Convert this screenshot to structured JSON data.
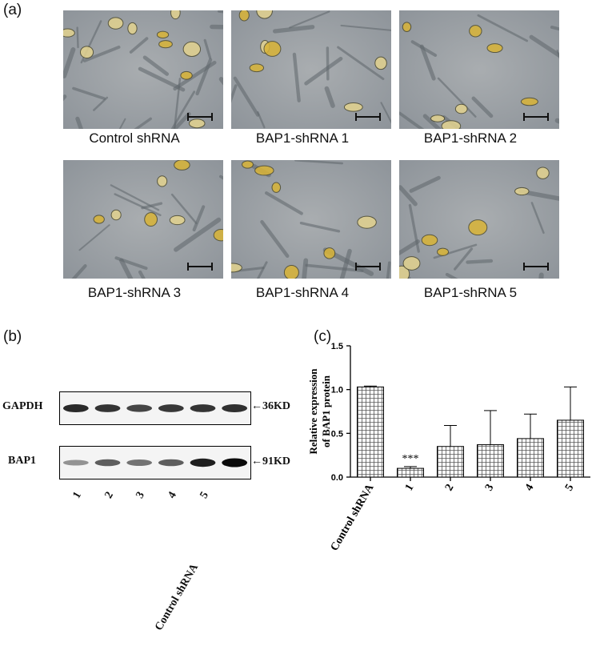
{
  "panels": {
    "a": "(a)",
    "b": "(b)",
    "c": "(c)"
  },
  "micrographs": [
    {
      "caption": "Control shRNA"
    },
    {
      "caption": "BAP1-shRNA 1"
    },
    {
      "caption": "BAP1-shRNA 2"
    },
    {
      "caption": "BAP1-shRNA 3"
    },
    {
      "caption": "BAP1-shRNA 4"
    },
    {
      "caption": "BAP1-shRNA 5"
    }
  ],
  "blot": {
    "rows": [
      {
        "label": "GAPDH",
        "size": "36KD",
        "intensities": [
          0.85,
          0.8,
          0.72,
          0.78,
          0.8,
          0.82
        ]
      },
      {
        "label": "BAP1",
        "size": "91KD",
        "intensities": [
          0.35,
          0.6,
          0.5,
          0.6,
          0.9,
          1.0
        ]
      }
    ],
    "lanes": [
      "1",
      "2",
      "3",
      "4",
      "5",
      "Control  shRNA"
    ]
  },
  "chart_data": {
    "type": "bar",
    "categories": [
      "Control shRNA",
      "1",
      "2",
      "3",
      "4",
      "5"
    ],
    "values": [
      1.03,
      0.1,
      0.35,
      0.37,
      0.44,
      0.65
    ],
    "error_upper": [
      1.04,
      0.12,
      0.59,
      0.76,
      0.72,
      1.03
    ],
    "annotations": [
      {
        "category": "1",
        "text": "***"
      }
    ],
    "ylabel_line1": "Relative expression",
    "ylabel_line2": "of BAP1 protein",
    "ylim": [
      0,
      1.5
    ],
    "yticks": [
      "0.0",
      "0.5",
      "1.0",
      "1.5"
    ],
    "grid": false
  }
}
